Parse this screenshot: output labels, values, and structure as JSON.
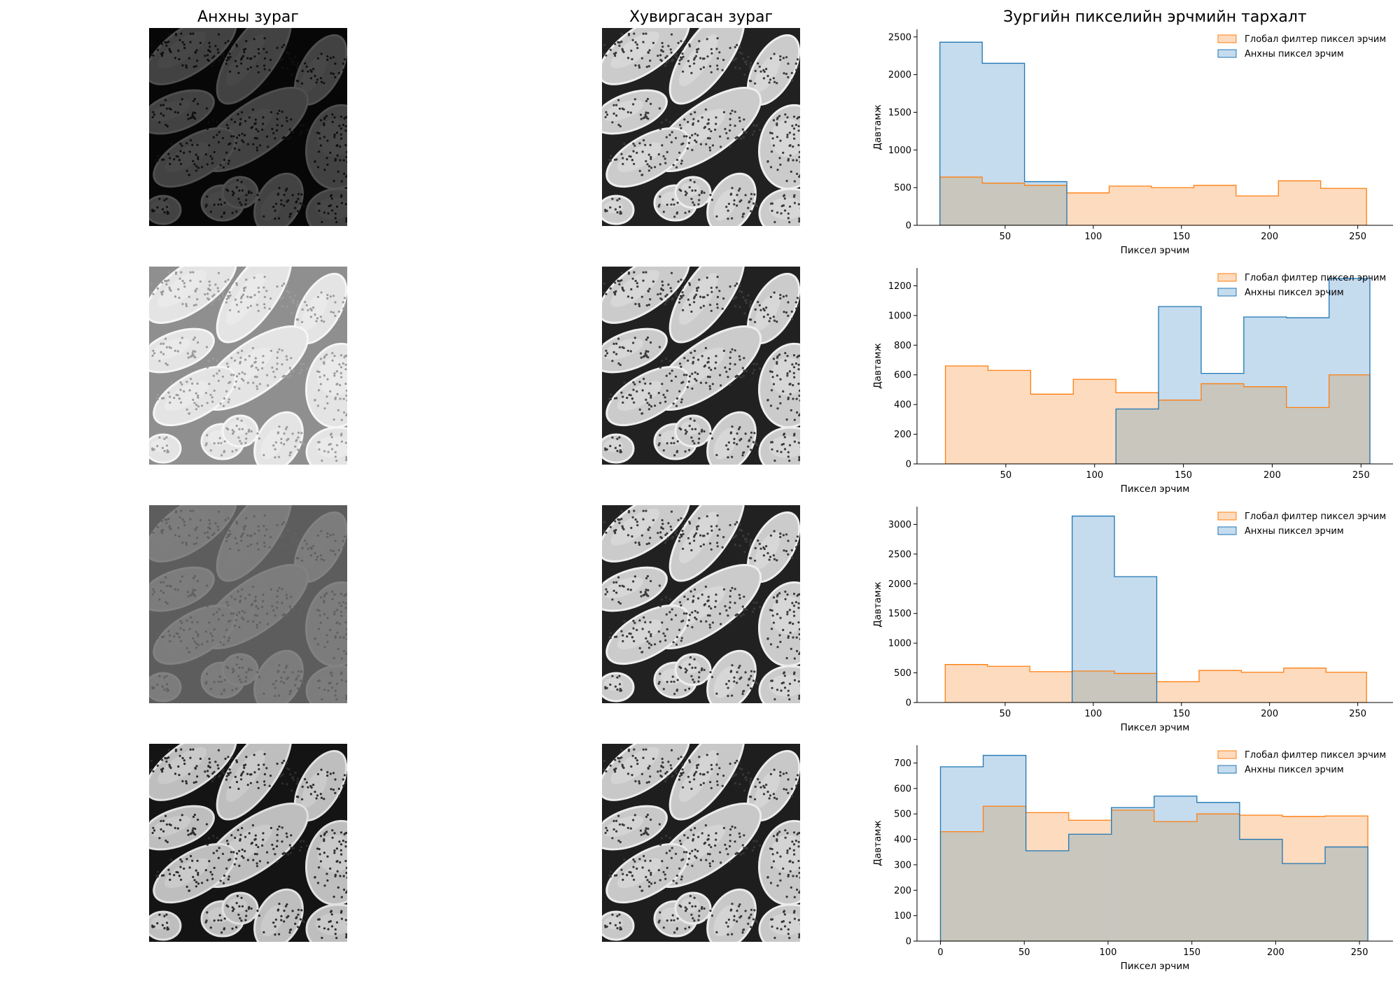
{
  "titles": {
    "col1": "Анхны зураг",
    "col2": "Хувиргасан зураг",
    "col3": "Зургийн пикселийн эрчмийн тархалт"
  },
  "colors": {
    "filtered_fill": "#fddbbf",
    "filtered_edge": "#ff7f0e",
    "original_fill": "#c5dbee",
    "original_edge": "#1f77b4",
    "overlap_fill": "#c8c6bd"
  },
  "rows": [
    {
      "original_image": {
        "brightness": "very-dark",
        "mean": 40,
        "contrast": 0.35
      },
      "transformed_image": {
        "mean": 128,
        "contrast": 1.0
      }
    },
    {
      "original_image": {
        "brightness": "bright",
        "mean": 190,
        "contrast": 0.5
      },
      "transformed_image": {
        "mean": 128,
        "contrast": 1.0
      }
    },
    {
      "original_image": {
        "brightness": "mid-gray-low-contrast",
        "mean": 110,
        "contrast": 0.18
      },
      "transformed_image": {
        "mean": 128,
        "contrast": 1.0
      }
    },
    {
      "original_image": {
        "brightness": "full-range",
        "mean": 115,
        "contrast": 1.0
      },
      "transformed_image": {
        "mean": 125,
        "contrast": 1.0
      }
    }
  ],
  "chart_data": [
    {
      "type": "histogram",
      "xlabel": "Пиксел эрчим",
      "ylabel": "Давтамж",
      "legend_position": "top-right",
      "xlim": [
        0,
        270
      ],
      "ylim": [
        0,
        2600
      ],
      "xticks": [
        50,
        100,
        150,
        200,
        250
      ],
      "yticks": [
        0,
        500,
        1000,
        1500,
        2000,
        2500
      ],
      "series": [
        {
          "name": "Глобал филтер пиксел эрчим",
          "bins": [
            13,
            37,
            61,
            85,
            109,
            133,
            157,
            181,
            205,
            229,
            255
          ],
          "counts": [
            640,
            560,
            530,
            430,
            520,
            500,
            530,
            390,
            590,
            490
          ]
        },
        {
          "name": "Анхны пиксел эрчим",
          "bins": [
            13,
            37,
            61,
            85
          ],
          "counts": [
            2430,
            2150,
            580
          ]
        }
      ]
    },
    {
      "type": "histogram",
      "xlabel": "Пиксел эрчим",
      "ylabel": "Давтамж",
      "legend_position": "top-right",
      "xlim": [
        0,
        268
      ],
      "ylim": [
        0,
        1320
      ],
      "xticks": [
        50,
        100,
        150,
        200,
        250
      ],
      "yticks": [
        0,
        200,
        400,
        600,
        800,
        1000,
        1200
      ],
      "series": [
        {
          "name": "Глобал филтер пиксел эрчим",
          "bins": [
            16,
            40,
            64,
            88,
            112,
            136,
            160,
            184,
            208,
            232,
            255
          ],
          "counts": [
            660,
            630,
            470,
            570,
            480,
            430,
            540,
            520,
            380,
            600
          ]
        },
        {
          "name": "Анхны пиксел эрчим",
          "bins": [
            112,
            136,
            160,
            184,
            208,
            232,
            255
          ],
          "counts": [
            370,
            1060,
            610,
            990,
            985,
            1250
          ]
        }
      ]
    },
    {
      "type": "histogram",
      "xlabel": "Пиксел эрчим",
      "ylabel": "Давтамж",
      "legend_position": "top-right",
      "xlim": [
        0,
        270
      ],
      "ylim": [
        0,
        3300
      ],
      "xticks": [
        50,
        100,
        150,
        200,
        250
      ],
      "yticks": [
        0,
        500,
        1000,
        1500,
        2000,
        2500,
        3000
      ],
      "series": [
        {
          "name": "Глобал филтер пиксел эрчим",
          "bins": [
            16,
            40,
            64,
            88,
            112,
            136,
            160,
            184,
            208,
            232,
            255
          ],
          "counts": [
            640,
            610,
            520,
            530,
            490,
            350,
            540,
            510,
            580,
            510
          ]
        },
        {
          "name": "Анхны пиксел эрчим",
          "bins": [
            88,
            112,
            136
          ],
          "counts": [
            3140,
            2120
          ]
        }
      ]
    },
    {
      "type": "histogram",
      "xlabel": "Пиксел эрчим",
      "ylabel": "Давтамж",
      "legend_position": "top-right",
      "xlim": [
        -14,
        270
      ],
      "ylim": [
        0,
        770
      ],
      "xticks": [
        0,
        50,
        100,
        150,
        200,
        250
      ],
      "yticks": [
        0,
        100,
        200,
        300,
        400,
        500,
        600,
        700
      ],
      "series": [
        {
          "name": "Глобал филтер пиксел эрчим",
          "bins": [
            0,
            25.5,
            51,
            76.5,
            102,
            127.5,
            153,
            178.5,
            204,
            229.5,
            255
          ],
          "counts": [
            430,
            530,
            505,
            475,
            515,
            470,
            500,
            495,
            490,
            492
          ]
        },
        {
          "name": "Анхны пиксел эрчим",
          "bins": [
            0,
            25.5,
            51,
            76.5,
            102,
            127.5,
            153,
            178.5,
            204,
            229.5,
            255
          ],
          "counts": [
            685,
            730,
            355,
            420,
            525,
            570,
            545,
            400,
            305,
            370
          ]
        }
      ]
    }
  ]
}
